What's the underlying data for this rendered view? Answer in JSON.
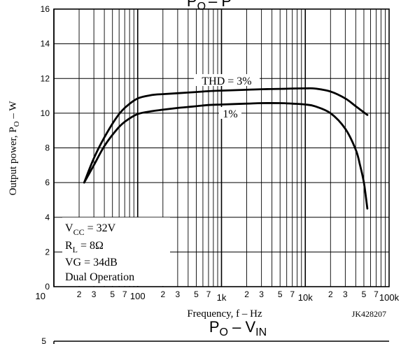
{
  "chart_data": {
    "type": "line",
    "title": "PO – PO",
    "title_parts": {
      "main": "P",
      "sub": "O",
      "rest": "– P"
    },
    "ylabel": "Output power, PO – W",
    "ylabel_parts": {
      "main": "Output power, P",
      "sub": "O",
      "rest": " – W"
    },
    "xlabel": "Frequency, f – Hz",
    "x_scale": "log",
    "xlim": [
      10,
      100000
    ],
    "ylim": [
      0,
      16
    ],
    "y_ticks": [
      0,
      2,
      4,
      6,
      8,
      10,
      12,
      14,
      16
    ],
    "x_major_ticks": [
      {
        "value": 10,
        "label": "10"
      },
      {
        "value": 100,
        "label": "100"
      },
      {
        "value": 1000,
        "label": "1k"
      },
      {
        "value": 10000,
        "label": "10k"
      },
      {
        "value": 100000,
        "label": "100k"
      }
    ],
    "x_minor_labels": [
      "2",
      "3",
      "5",
      "7"
    ],
    "grid": true,
    "series": [
      {
        "name": "THD = 3%",
        "x": [
          23,
          30,
          40,
          55,
          70,
          100,
          150,
          200,
          300,
          500,
          700,
          1000,
          2000,
          3000,
          5000,
          7000,
          10000,
          13000,
          20000,
          30000,
          40000,
          55000
        ],
        "y": [
          6.0,
          7.4,
          8.6,
          9.7,
          10.3,
          10.85,
          11.05,
          11.1,
          11.15,
          11.22,
          11.27,
          11.3,
          11.35,
          11.38,
          11.4,
          11.42,
          11.43,
          11.42,
          11.25,
          10.85,
          10.4,
          9.9
        ]
      },
      {
        "name": "1%",
        "x": [
          23,
          30,
          40,
          55,
          70,
          100,
          150,
          200,
          300,
          500,
          700,
          1000,
          2000,
          3000,
          5000,
          7000,
          10000,
          13000,
          20000,
          30000,
          40000,
          45000,
          50000,
          55000
        ],
        "y": [
          6.0,
          7.0,
          8.1,
          9.0,
          9.5,
          9.95,
          10.12,
          10.2,
          10.3,
          10.4,
          10.47,
          10.5,
          10.55,
          10.58,
          10.58,
          10.55,
          10.5,
          10.4,
          10.0,
          9.1,
          7.9,
          7.0,
          6.0,
          4.5
        ]
      }
    ],
    "annotations": [
      {
        "text": "THD = 3%",
        "series": "THD = 3%"
      },
      {
        "text": "1%",
        "series": "1%"
      }
    ],
    "conditions_box": {
      "vcc": {
        "main": "V",
        "sub": "CC",
        "rest": " = 32V"
      },
      "rl": {
        "main": "R",
        "sub": "L",
        "rest": " = 8Ω"
      },
      "vg": "VG = 34dB",
      "mode": "Dual Operation"
    },
    "part_code": "JK428207",
    "colors": {
      "curve": "#000000",
      "grid": "#000000",
      "background": "#ffffff"
    }
  },
  "next_chart": {
    "title_parts": {
      "main": "P",
      "sub": "O",
      "rest": " – V",
      "sub2": "IN"
    },
    "y_top_label": "5"
  }
}
